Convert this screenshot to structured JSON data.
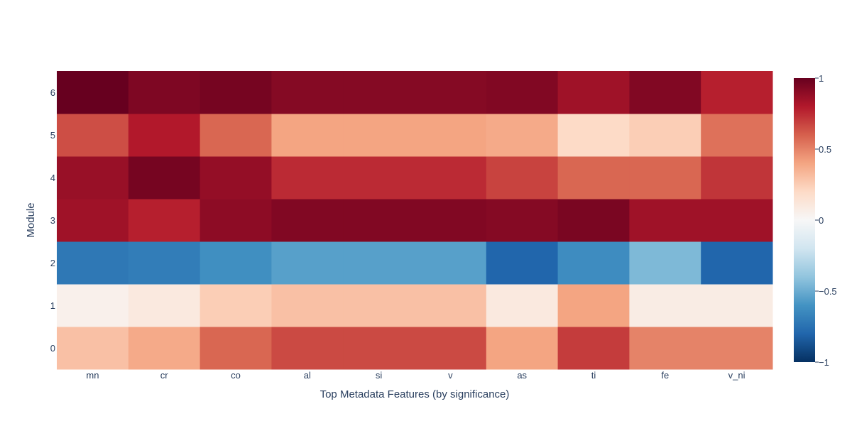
{
  "chart_data": {
    "type": "heatmap",
    "title": "",
    "xlabel": "Top Metadata Features (by significance)",
    "ylabel": "Module",
    "x": [
      "mn",
      "cr",
      "co",
      "al",
      "si",
      "v",
      "as",
      "ti",
      "fe",
      "v_ni"
    ],
    "y": [
      "0",
      "1",
      "2",
      "3",
      "4",
      "5",
      "6"
    ],
    "z": [
      [
        0.3,
        0.38,
        0.58,
        0.66,
        0.66,
        0.66,
        0.4,
        0.7,
        0.5,
        0.5
      ],
      [
        0.05,
        0.1,
        0.25,
        0.3,
        0.3,
        0.3,
        0.1,
        0.4,
        0.08,
        0.08
      ],
      [
        -0.72,
        -0.7,
        -0.62,
        -0.55,
        -0.55,
        -0.55,
        -0.8,
        -0.63,
        -0.45,
        -0.8
      ],
      [
        0.85,
        0.78,
        0.9,
        0.93,
        0.93,
        0.93,
        0.92,
        0.95,
        0.85,
        0.85
      ],
      [
        0.87,
        0.96,
        0.88,
        0.75,
        0.75,
        0.75,
        0.68,
        0.58,
        0.58,
        0.72
      ],
      [
        0.65,
        0.8,
        0.58,
        0.4,
        0.4,
        0.4,
        0.38,
        0.2,
        0.25,
        0.55
      ],
      [
        1.0,
        0.94,
        0.96,
        0.92,
        0.92,
        0.92,
        0.93,
        0.85,
        0.93,
        0.78
      ]
    ],
    "zmin": -1,
    "zmax": 1,
    "colorscale": [
      "#053061",
      "#2166ac",
      "#4393c3",
      "#92c5de",
      "#d1e5f0",
      "#f7f7f7",
      "#fddbc7",
      "#f4a582",
      "#d6604d",
      "#b2182b",
      "#67001f"
    ],
    "colorbar_ticks": [
      "1",
      "0.5",
      "0",
      "−0.5",
      "−1"
    ],
    "colorbar_tick_values": [
      1,
      0.5,
      0,
      -0.5,
      -1
    ],
    "grid": false,
    "legend": "colorbar-right"
  }
}
